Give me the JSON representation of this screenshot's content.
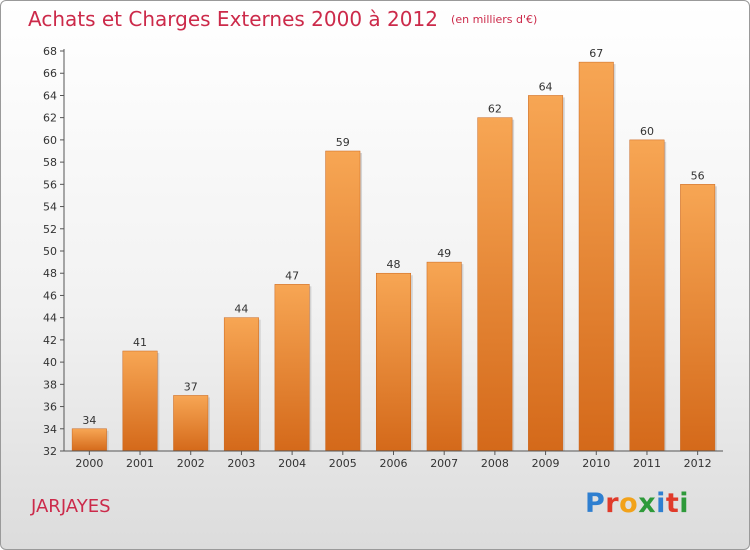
{
  "header": {
    "title": "Achats et Charges Externes 2000 à 2012",
    "subtitle": "(en milliers d'€)"
  },
  "footer": {
    "commune": "JARJAYES",
    "logo": {
      "letters": [
        "P",
        "r",
        "o",
        "x",
        "i",
        "t",
        "i"
      ],
      "colors": [
        "#2f7fd0",
        "#e03a2a",
        "#f2a21a",
        "#2e9a3a",
        "#2f7fd0",
        "#e03a2a",
        "#2e9a3a"
      ]
    }
  },
  "chart_data": {
    "type": "bar",
    "title": "Achats et Charges Externes 2000 à 2012",
    "subtitle": "(en milliers d'€)",
    "categories": [
      "2000",
      "2001",
      "2002",
      "2003",
      "2004",
      "2005",
      "2006",
      "2007",
      "2008",
      "2009",
      "2010",
      "2011",
      "2012"
    ],
    "values": [
      34,
      41,
      37,
      44,
      47,
      59,
      48,
      49,
      62,
      64,
      67,
      60,
      56
    ],
    "ylim": [
      32,
      68
    ],
    "yticks": [
      32,
      34,
      36,
      38,
      40,
      42,
      44,
      46,
      48,
      50,
      52,
      54,
      56,
      58,
      60,
      62,
      64,
      66,
      68
    ],
    "grid": false,
    "legend": "none",
    "colors": {
      "bar_light": "#f7a654",
      "bar_dark": "#d4691a",
      "axis": "#555555"
    }
  }
}
